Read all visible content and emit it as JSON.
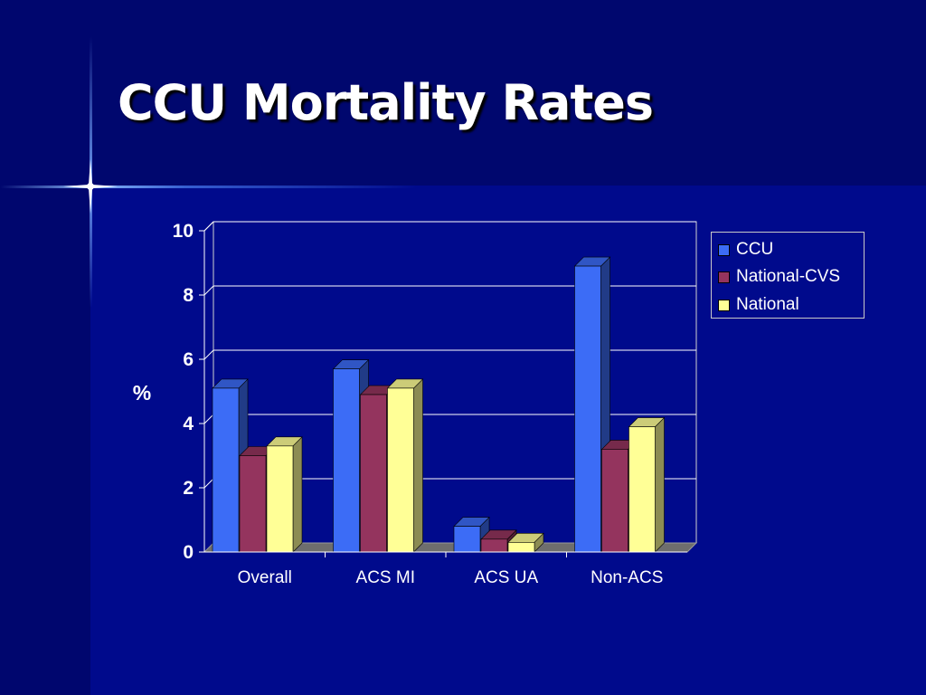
{
  "slide": {
    "title": "CCU Mortality Rates"
  },
  "chart_data": {
    "type": "bar",
    "title": "",
    "xlabel": "",
    "ylabel": "%",
    "ylim": [
      0,
      10
    ],
    "yticks": [
      0,
      2,
      4,
      6,
      8,
      10
    ],
    "categories": [
      "Overall",
      "ACS MI",
      "ACS UA",
      "Non-ACS"
    ],
    "series": [
      {
        "name": "CCU",
        "color": "#3c6cf6",
        "values": [
          5.1,
          5.7,
          0.8,
          8.9
        ]
      },
      {
        "name": "National-CVS",
        "color": "#94345e",
        "values": [
          3.0,
          4.9,
          0.4,
          3.2
        ]
      },
      {
        "name": "National",
        "color": "#ffff96",
        "values": [
          3.3,
          5.1,
          0.3,
          3.9
        ]
      }
    ],
    "grid": true,
    "legend_position": "right",
    "three_d": true
  }
}
